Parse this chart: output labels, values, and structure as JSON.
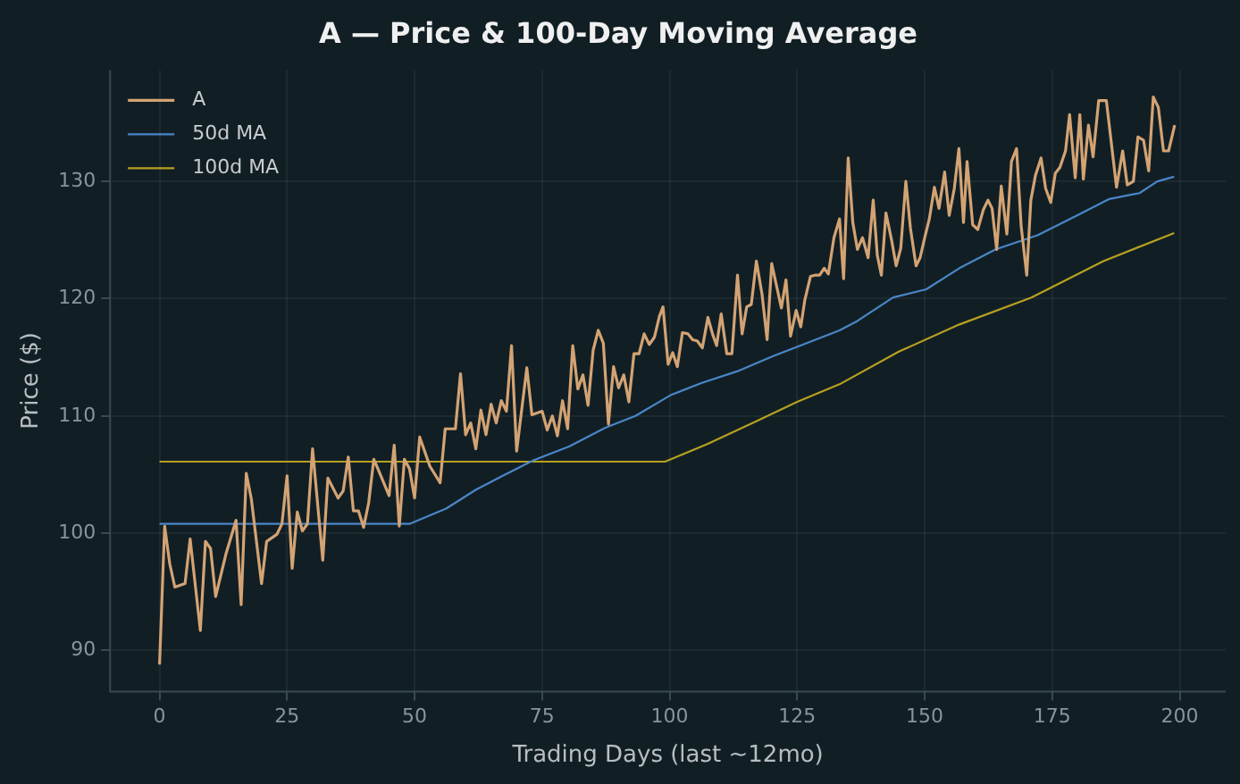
{
  "chart_data": {
    "type": "line",
    "title": "A — Price & 100-Day Moving Average",
    "xlabel": "Trading Days (last ~12mo)",
    "ylabel": "Price ($)",
    "xlim": [
      -9.7,
      209
    ],
    "ylim": [
      86.5,
      139.5
    ],
    "xticks": [
      0,
      25,
      50,
      75,
      100,
      125,
      150,
      175,
      200
    ],
    "yticks": [
      90,
      100,
      110,
      120,
      130
    ],
    "grid": true,
    "legend": "top left",
    "marker": "none",
    "line_style": "solid",
    "series": [
      {
        "name": "A",
        "color": "#d4a373",
        "x": [
          0,
          1,
          2,
          3,
          5,
          6,
          8,
          9,
          10,
          11,
          13,
          15,
          16,
          17,
          18,
          20,
          21,
          23,
          24,
          25,
          26,
          27,
          28,
          29,
          30,
          32,
          33,
          35,
          36,
          37,
          38,
          39,
          40,
          41,
          42,
          43,
          45,
          46,
          47,
          48,
          49,
          50,
          51,
          53,
          55,
          56,
          58,
          59,
          60,
          61,
          62,
          63,
          64,
          65,
          66,
          67,
          68,
          69,
          70,
          72,
          73,
          75,
          76,
          77,
          78,
          79,
          80,
          81,
          82,
          83,
          84,
          85,
          86,
          87,
          88,
          89,
          90,
          91,
          92,
          93,
          94,
          95,
          96,
          97,
          98,
          98.7,
          99.7,
          100.6,
          101.5,
          102.5,
          103.6,
          104.5,
          105.4,
          106.4,
          107.5,
          108.4,
          109.2,
          110.1,
          111.2,
          112.2,
          113.3,
          114.2,
          115.1,
          116,
          117,
          118.1,
          119.1,
          120,
          120.9,
          121.9,
          122.8,
          123.7,
          124.8,
          125.7,
          126.5,
          127.6,
          128.5,
          129.4,
          130.3,
          131.1,
          132.2,
          133.3,
          134.1,
          135,
          135.9,
          136.8,
          137.8,
          138.9,
          139.9,
          140.7,
          141.5,
          142.4,
          143.5,
          144.4,
          145.3,
          146.3,
          147.2,
          148.3,
          149.1,
          150,
          150.9,
          151.9,
          152.8,
          153.9,
          154.8,
          155.8,
          156.7,
          157.6,
          158.3,
          159.4,
          160.4,
          161.5,
          162.4,
          163.2,
          164.1,
          165,
          166.1,
          167,
          168,
          168.9,
          170,
          170.8,
          171.7,
          172.8,
          173.7,
          174.7,
          175.6,
          176.5,
          177.6,
          178.4,
          179.5,
          180.4,
          181.1,
          182.1,
          183,
          184.1,
          185.6,
          187.6,
          188.8,
          189.7,
          190.9,
          191.8,
          192.9,
          193.9,
          194.8,
          195.8,
          196.8,
          197.8,
          199
        ],
        "values": [
          88.8,
          100.6,
          97.4,
          95.4,
          95.7,
          99.5,
          91.7,
          99.3,
          98.7,
          94.6,
          98.2,
          101.1,
          93.9,
          105.1,
          102.9,
          95.7,
          99.3,
          99.9,
          100.8,
          104.9,
          97,
          101.8,
          100.2,
          100.8,
          107.2,
          97.7,
          104.7,
          103,
          103.6,
          106.5,
          101.9,
          101.9,
          100.5,
          102.6,
          106.3,
          105.3,
          103.2,
          107.5,
          100.6,
          106.3,
          105.5,
          103,
          108.2,
          105.7,
          104.3,
          108.9,
          108.9,
          113.6,
          108.4,
          109.4,
          107.2,
          110.5,
          108.4,
          111,
          109.4,
          111.3,
          110.4,
          116,
          107,
          114.1,
          110.1,
          110.4,
          108.8,
          110,
          108.3,
          111.3,
          108.9,
          116,
          112.3,
          113.5,
          110.9,
          115.6,
          117.3,
          116.2,
          109.3,
          114.2,
          112.4,
          113.5,
          111.2,
          115.3,
          115.3,
          117,
          116.1,
          116.7,
          118.5,
          119.3,
          114.4,
          115.4,
          114.2,
          117.1,
          117,
          116.5,
          116.4,
          115.8,
          118.4,
          117,
          116,
          118.7,
          115.3,
          115.3,
          122,
          117,
          119.3,
          119.5,
          123.2,
          120.4,
          116.5,
          123,
          121.2,
          119.2,
          121.6,
          116.8,
          119,
          117.6,
          119.9,
          121.9,
          122,
          122,
          122.6,
          122.1,
          125.2,
          126.8,
          121.7,
          132,
          126.5,
          124.2,
          125.2,
          123.5,
          128.4,
          123.7,
          122,
          127.3,
          125,
          122.8,
          124.3,
          130,
          126,
          122.8,
          123.5,
          125.2,
          126.8,
          129.5,
          127.7,
          130.8,
          127.1,
          129.4,
          132.8,
          126.5,
          131.7,
          126.3,
          125.9,
          127.6,
          128.4,
          127.7,
          124.2,
          129.6,
          125.5,
          131.7,
          132.8,
          126.2,
          122,
          128.4,
          130.5,
          132,
          129.4,
          128.2,
          130.7,
          131.2,
          132.6,
          135.7,
          130.3,
          135.7,
          130.2,
          134.8,
          132.1,
          136.9,
          136.9,
          129.5,
          132.6,
          129.7,
          130,
          133.8,
          133.5,
          130.9,
          137.2,
          136.3,
          132.6,
          132.6,
          134.8
        ]
      },
      {
        "name": "50d MA",
        "color": "#4a86c8",
        "x": [
          0,
          49.1,
          56.2,
          62,
          67.3,
          73.2,
          80.3,
          87.4,
          93.3,
          100.3,
          106.2,
          113.2,
          120.3,
          126.2,
          133.3,
          136.8,
          143.8,
          150.3,
          156.8,
          163.9,
          172.1,
          180.3,
          186.2,
          192.1,
          195.6,
          198.9
        ],
        "values": [
          100.8,
          100.8,
          102.1,
          103.7,
          104.9,
          106.2,
          107.4,
          109,
          110,
          111.8,
          112.8,
          113.8,
          115.1,
          116.1,
          117.3,
          118.1,
          120.1,
          120.8,
          122.6,
          124.2,
          125.4,
          127.2,
          128.5,
          129,
          130,
          130.4
        ]
      },
      {
        "name": "100d MA",
        "color": "#b8a020",
        "x": [
          0,
          99.1,
          107.4,
          116.8,
          125,
          133.3,
          145,
          156.8,
          170.9,
          185,
          198.9
        ],
        "values": [
          106.1,
          106.1,
          107.6,
          109.5,
          111.2,
          112.7,
          115.5,
          117.8,
          120.1,
          123.2,
          125.6
        ]
      }
    ]
  }
}
